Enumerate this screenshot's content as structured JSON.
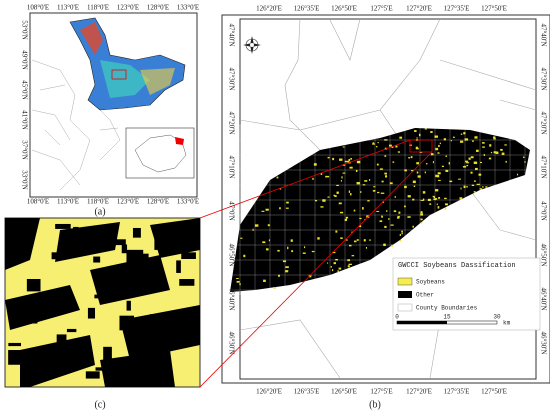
{
  "panel_a": {
    "caption": "(a)",
    "lon_labels": [
      "108°0'E",
      "113°0'E",
      "118°0'E",
      "123°0'E",
      "128°0'E",
      "133°0'E"
    ],
    "lat_labels": [
      "53°0'N",
      "49°0'N",
      "45°0'N",
      "41°0'N",
      "37°0'N",
      "33°0'N"
    ]
  },
  "panel_b": {
    "caption": "(b)",
    "lon_labels": [
      "126°20'E",
      "126°35'E",
      "126°50'E",
      "127°5'E",
      "127°20'E",
      "127°35'E",
      "127°50'E"
    ],
    "lat_labels": [
      "47°40'N",
      "47°30'N",
      "47°20'N",
      "47°10'N",
      "47°0'N",
      "46°50'N",
      "46°40'N",
      "46°30'N"
    ],
    "legend": {
      "title": "GWCCI Soybeans Dassification",
      "items": [
        "Soybeans",
        "Other",
        "County Boundaries"
      ],
      "scale": [
        "0",
        "15",
        "30"
      ],
      "unit": "km"
    }
  },
  "panel_c": {
    "caption": "(c)"
  }
}
